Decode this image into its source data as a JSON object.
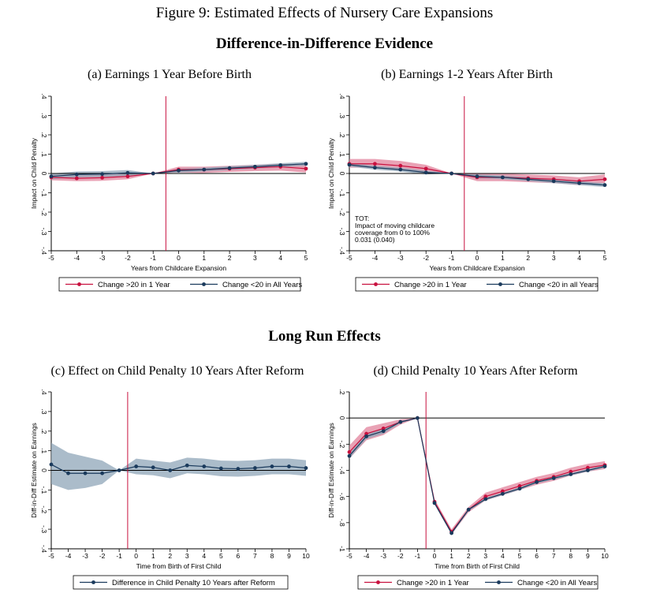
{
  "figure": {
    "title": "Figure 9: Estimated Effects of Nursery Care Expansions",
    "subtitle_top": "Difference-in-Difference Evidence",
    "subtitle_bottom": "Long Run Effects"
  },
  "colors": {
    "red": "#c8103e",
    "navy": "#1a3a5c",
    "red_band": "#e07b95",
    "blue_band": "#8fa5b8",
    "vline": "#c8103e"
  },
  "chart_data": [
    {
      "id": "a",
      "type": "line",
      "title": "(a) Earnings 1 Year Before Birth",
      "xlabel": "Years from Childcare Expansion",
      "ylabel": "Impact on Child Penalty",
      "xlim": [
        -5,
        5
      ],
      "ylim": [
        -0.4,
        0.4
      ],
      "xticks": [
        "-5",
        "-4",
        "-3",
        "-2",
        "-1",
        "0",
        "1",
        "2",
        "3",
        "4",
        "5"
      ],
      "yticks": [
        ".4",
        ".3",
        ".2",
        ".1",
        "0",
        "-.1",
        "-.2",
        "-.3",
        "-.4"
      ],
      "vline_x": -0.5,
      "legend": "bottom",
      "x": [
        -5,
        -4,
        -3,
        -2,
        -1,
        0,
        1,
        2,
        3,
        4,
        5
      ],
      "series": [
        {
          "name": "Change >20 in 1 Year",
          "color": "red",
          "values": [
            -0.02,
            -0.025,
            -0.022,
            -0.015,
            0,
            0.02,
            0.02,
            0.025,
            0.03,
            0.035,
            0.025
          ],
          "lo": [
            -0.035,
            -0.04,
            -0.038,
            -0.03,
            0,
            0.005,
            0.003,
            0.008,
            0.012,
            0.015,
            0.005
          ],
          "hi": [
            -0.005,
            -0.01,
            -0.006,
            0,
            0,
            0.035,
            0.035,
            0.04,
            0.045,
            0.05,
            0.045
          ]
        },
        {
          "name": "Change <20 in All Years",
          "color": "navy",
          "values": [
            -0.015,
            -0.005,
            -0.003,
            0.003,
            0,
            0.015,
            0.02,
            0.028,
            0.035,
            0.043,
            0.05
          ],
          "lo": [
            -0.03,
            -0.02,
            -0.018,
            -0.012,
            0,
            0.005,
            0.01,
            0.018,
            0.025,
            0.033,
            0.04
          ],
          "hi": [
            0,
            0.01,
            0.012,
            0.018,
            0,
            0.025,
            0.03,
            0.038,
            0.045,
            0.053,
            0.06
          ]
        }
      ]
    },
    {
      "id": "b",
      "type": "line",
      "title": "(b) Earnings 1-2 Years After Birth",
      "xlabel": "Years from Childcare Expansion",
      "ylabel": "Impact on Child Penalty",
      "xlim": [
        -5,
        5
      ],
      "ylim": [
        -0.4,
        0.4
      ],
      "xticks": [
        "-5",
        "-4",
        "-3",
        "-2",
        "-1",
        "0",
        "1",
        "2",
        "3",
        "4",
        "5"
      ],
      "yticks": [
        ".4",
        ".3",
        ".2",
        ".1",
        "0",
        "-.1",
        "-.2",
        "-.3",
        "-.4"
      ],
      "vline_x": -0.5,
      "legend": "bottom",
      "annotation": [
        "TOT:",
        "Impact of moving childcare",
        "coverage from 0 to 100%",
        "0.031 (0.040)"
      ],
      "x": [
        -5,
        -4,
        -3,
        -2,
        -1,
        0,
        1,
        2,
        3,
        4,
        5
      ],
      "series": [
        {
          "name": "Change >20 in 1 Year",
          "color": "red",
          "values": [
            0.05,
            0.05,
            0.04,
            0.025,
            0,
            -0.02,
            -0.02,
            -0.025,
            -0.03,
            -0.04,
            -0.03
          ],
          "lo": [
            0.03,
            0.03,
            0.02,
            0.005,
            0,
            -0.04,
            -0.04,
            -0.045,
            -0.05,
            -0.06,
            -0.05
          ],
          "hi": [
            0.075,
            0.075,
            0.065,
            0.045,
            0,
            0,
            0,
            -0.005,
            -0.01,
            -0.02,
            -0.005
          ]
        },
        {
          "name": "Change <20 in all Years",
          "color": "navy",
          "values": [
            0.045,
            0.03,
            0.02,
            0.005,
            0,
            -0.015,
            -0.02,
            -0.03,
            -0.04,
            -0.05,
            -0.06
          ],
          "lo": [
            0.035,
            0.02,
            0.01,
            -0.005,
            0,
            -0.025,
            -0.03,
            -0.04,
            -0.05,
            -0.06,
            -0.07
          ],
          "hi": [
            0.055,
            0.04,
            0.03,
            0.015,
            0,
            -0.005,
            -0.01,
            -0.02,
            -0.03,
            -0.04,
            -0.05
          ]
        }
      ]
    },
    {
      "id": "c",
      "type": "line",
      "title": "(c) Effect on Child Penalty 10 Years After Reform",
      "xlabel": "Time from Birth of First Child",
      "ylabel": "Diff-in-Diff Estimate on Earnings",
      "xlim": [
        -5,
        10
      ],
      "ylim": [
        -0.4,
        0.4
      ],
      "xticks": [
        "-5",
        "-4",
        "-3",
        "-2",
        "-1",
        "0",
        "1",
        "2",
        "3",
        "4",
        "5",
        "6",
        "7",
        "8",
        "9",
        "10"
      ],
      "yticks": [
        ".4",
        ".3",
        ".2",
        ".1",
        "0",
        "-.1",
        "-.2",
        "-.3",
        "-.4"
      ],
      "vline_x": -0.5,
      "legend": "bottom",
      "x": [
        -5,
        -4,
        -3,
        -2,
        -1,
        0,
        1,
        2,
        3,
        4,
        5,
        6,
        7,
        8,
        9,
        10
      ],
      "series": [
        {
          "name": "Difference in Child Penalty 10 Years after Reform",
          "color": "navy",
          "values": [
            0.03,
            -0.015,
            -0.015,
            -0.015,
            0,
            0.02,
            0.015,
            0,
            0.025,
            0.02,
            0.01,
            0.008,
            0.012,
            0.02,
            0.02,
            0.012
          ],
          "lo": [
            -0.07,
            -0.1,
            -0.09,
            -0.07,
            0,
            -0.02,
            -0.025,
            -0.04,
            -0.015,
            -0.02,
            -0.03,
            -0.032,
            -0.028,
            -0.02,
            -0.02,
            -0.028
          ],
          "hi": [
            0.14,
            0.09,
            0.07,
            0.05,
            0,
            0.06,
            0.05,
            0.04,
            0.065,
            0.06,
            0.05,
            0.048,
            0.052,
            0.06,
            0.06,
            0.052
          ]
        }
      ]
    },
    {
      "id": "d",
      "type": "line",
      "title": "(d) Child Penalty 10 Years After Reform",
      "xlabel": "Time from Birth of First Child",
      "ylabel": "Diff-in-Diff Estimate on Earnings",
      "xlim": [
        -5,
        10
      ],
      "ylim": [
        -1,
        0.2
      ],
      "xticks": [
        "-5",
        "-4",
        "-3",
        "-2",
        "-1",
        "0",
        "1",
        "2",
        "3",
        "4",
        "5",
        "6",
        "7",
        "8",
        "9",
        "10"
      ],
      "yticks": [
        ".2",
        "0",
        "-.2",
        "-.4",
        "-.6",
        "-.8",
        "-1"
      ],
      "vline_x": -0.5,
      "hline_y": 0,
      "legend": "bottom",
      "x": [
        -5,
        -4,
        -3,
        -2,
        -1,
        0,
        1,
        2,
        3,
        4,
        5,
        6,
        7,
        8,
        9,
        10
      ],
      "series": [
        {
          "name": "Change >20 in 1 Year",
          "color": "red",
          "values": [
            -0.26,
            -0.12,
            -0.08,
            -0.03,
            0,
            -0.64,
            -0.87,
            -0.7,
            -0.6,
            -0.56,
            -0.52,
            -0.48,
            -0.45,
            -0.41,
            -0.38,
            -0.36
          ],
          "lo": [
            -0.31,
            -0.17,
            -0.13,
            -0.05,
            0,
            -0.66,
            -0.89,
            -0.72,
            -0.63,
            -0.59,
            -0.55,
            -0.51,
            -0.48,
            -0.44,
            -0.41,
            -0.39
          ],
          "hi": [
            -0.21,
            -0.07,
            -0.04,
            -0.01,
            0,
            -0.62,
            -0.85,
            -0.68,
            -0.57,
            -0.53,
            -0.49,
            -0.45,
            -0.42,
            -0.38,
            -0.35,
            -0.33
          ]
        },
        {
          "name": "Change <20 in All Years",
          "color": "navy",
          "values": [
            -0.29,
            -0.14,
            -0.1,
            -0.03,
            0,
            -0.65,
            -0.88,
            -0.7,
            -0.62,
            -0.58,
            -0.54,
            -0.49,
            -0.46,
            -0.43,
            -0.4,
            -0.37
          ],
          "lo": [
            -0.31,
            -0.16,
            -0.12,
            -0.04,
            0,
            -0.66,
            -0.89,
            -0.71,
            -0.63,
            -0.59,
            -0.55,
            -0.5,
            -0.47,
            -0.44,
            -0.41,
            -0.38
          ],
          "hi": [
            -0.27,
            -0.12,
            -0.08,
            -0.02,
            0,
            -0.64,
            -0.87,
            -0.69,
            -0.61,
            -0.57,
            -0.53,
            -0.48,
            -0.45,
            -0.42,
            -0.39,
            -0.36
          ]
        }
      ]
    }
  ]
}
